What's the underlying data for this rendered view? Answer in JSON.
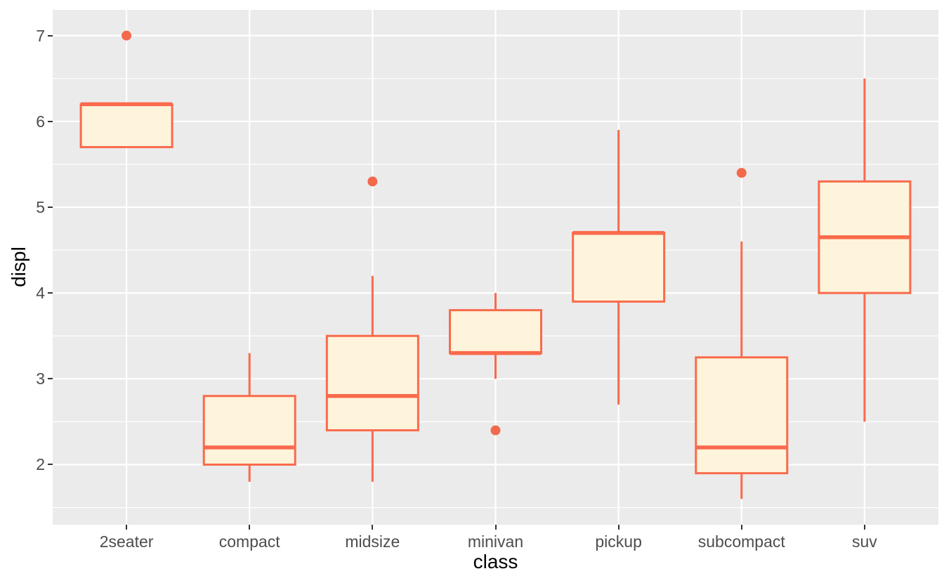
{
  "chart_data": {
    "type": "boxplot",
    "title": "",
    "xlabel": "class",
    "ylabel": "displ",
    "categories": [
      "2seater",
      "compact",
      "midsize",
      "minivan",
      "pickup",
      "subcompact",
      "suv"
    ],
    "series": [
      {
        "name": "2seater",
        "whisker_low": 5.7,
        "q1": 5.7,
        "median": 6.2,
        "q3": 6.2,
        "whisker_high": 6.2,
        "outliers": [
          7.0
        ]
      },
      {
        "name": "compact",
        "whisker_low": 1.8,
        "q1": 2.0,
        "median": 2.2,
        "q3": 2.8,
        "whisker_high": 3.3,
        "outliers": []
      },
      {
        "name": "midsize",
        "whisker_low": 1.8,
        "q1": 2.4,
        "median": 2.8,
        "q3": 3.5,
        "whisker_high": 4.2,
        "outliers": [
          5.3
        ]
      },
      {
        "name": "minivan",
        "whisker_low": 3.0,
        "q1": 3.3,
        "median": 3.3,
        "q3": 3.8,
        "whisker_high": 4.0,
        "outliers": [
          2.4
        ]
      },
      {
        "name": "pickup",
        "whisker_low": 2.7,
        "q1": 3.9,
        "median": 4.7,
        "q3": 4.7,
        "whisker_high": 5.9,
        "outliers": []
      },
      {
        "name": "subcompact",
        "whisker_low": 1.6,
        "q1": 1.9,
        "median": 2.2,
        "q3": 3.25,
        "whisker_high": 4.6,
        "outliers": [
          5.4
        ]
      },
      {
        "name": "suv",
        "whisker_low": 2.5,
        "q1": 4.0,
        "median": 4.65,
        "q3": 5.3,
        "whisker_high": 6.5,
        "outliers": []
      }
    ],
    "y_ticks": [
      2,
      3,
      4,
      5,
      6,
      7
    ],
    "y_minor_ticks": [
      1.5,
      2.5,
      3.5,
      4.5,
      5.5,
      6.5
    ],
    "ylim": [
      1.3,
      7.3
    ],
    "grid": "major-and-minor-white-on-grey",
    "legend": "none",
    "colors": {
      "box_stroke": "#FA6A4C",
      "box_fill": "#FDF4DB",
      "outlier": "#F3694C",
      "panel_bg": "#EBEBEB",
      "gridline": "#FFFFFF",
      "tick_text": "#4D4D4D",
      "axis_title": "#000000",
      "tick_mark": "#333333"
    }
  }
}
